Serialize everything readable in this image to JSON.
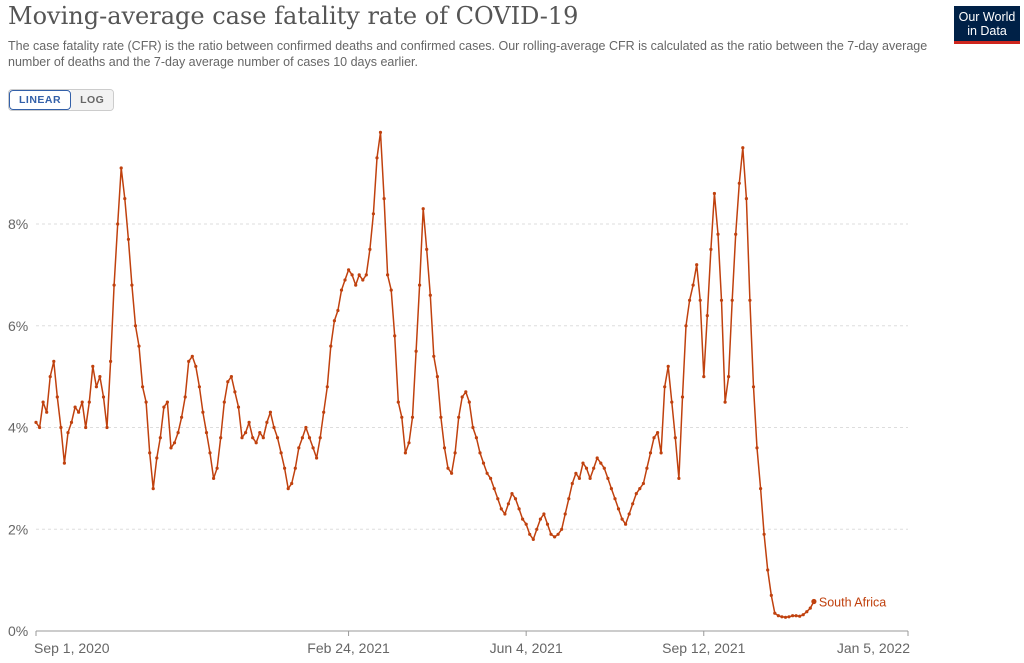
{
  "title": "Moving-average case fatality rate of COVID-19",
  "subtitle": "The case fatality rate (CFR) is the ratio between confirmed deaths and confirmed cases. Our rolling-average CFR is calculated as the ratio between the 7-day average number of deaths and the 7-day average number of cases 10 days earlier.",
  "logo": {
    "line1": "Our World",
    "line2": "in Data"
  },
  "scale_toggle": {
    "linear_label": "LINEAR",
    "log_label": "LOG",
    "selected": "LINEAR"
  },
  "colors": {
    "series": "#c0410e",
    "grid": "#dddddd",
    "axis": "#999999",
    "logo_bg": "#002147",
    "logo_accent": "#ce261e"
  },
  "chart_data": {
    "type": "line",
    "title": "Moving-average case fatality rate of COVID-19",
    "xlabel": "",
    "ylabel": "",
    "x_range": [
      "2020-09-01",
      "2022-01-05"
    ],
    "ylim": [
      0,
      9.9
    ],
    "y_ticks": [
      0,
      2,
      4,
      6,
      8
    ],
    "y_tick_labels": [
      "0%",
      "2%",
      "4%",
      "6%",
      "8%"
    ],
    "x_ticks": [
      "2020-09-01",
      "2021-02-24",
      "2021-06-04",
      "2021-09-12",
      "2022-01-05"
    ],
    "x_tick_labels": [
      "Sep 1, 2020",
      "Feb 24, 2021",
      "Jun 4, 2021",
      "Sep 12, 2021",
      "Jan 5, 2022"
    ],
    "grid": true,
    "series": [
      {
        "name": "South Africa",
        "color": "#c0410e",
        "points": [
          [
            0,
            4.1
          ],
          [
            2,
            4.0
          ],
          [
            4,
            4.5
          ],
          [
            6,
            4.3
          ],
          [
            8,
            5.0
          ],
          [
            10,
            5.3
          ],
          [
            12,
            4.6
          ],
          [
            14,
            4.0
          ],
          [
            16,
            3.3
          ],
          [
            18,
            3.9
          ],
          [
            20,
            4.1
          ],
          [
            22,
            4.4
          ],
          [
            24,
            4.3
          ],
          [
            26,
            4.5
          ],
          [
            28,
            4.0
          ],
          [
            30,
            4.5
          ],
          [
            32,
            5.2
          ],
          [
            34,
            4.8
          ],
          [
            36,
            5.0
          ],
          [
            38,
            4.6
          ],
          [
            40,
            4.0
          ],
          [
            42,
            5.3
          ],
          [
            44,
            6.8
          ],
          [
            46,
            8.0
          ],
          [
            48,
            9.1
          ],
          [
            50,
            8.5
          ],
          [
            52,
            7.7
          ],
          [
            54,
            6.8
          ],
          [
            56,
            6.0
          ],
          [
            58,
            5.6
          ],
          [
            60,
            4.8
          ],
          [
            62,
            4.5
          ],
          [
            64,
            3.5
          ],
          [
            66,
            2.8
          ],
          [
            68,
            3.4
          ],
          [
            70,
            3.8
          ],
          [
            72,
            4.4
          ],
          [
            74,
            4.5
          ],
          [
            76,
            3.6
          ],
          [
            78,
            3.7
          ],
          [
            80,
            3.9
          ],
          [
            82,
            4.2
          ],
          [
            84,
            4.6
          ],
          [
            86,
            5.3
          ],
          [
            88,
            5.4
          ],
          [
            90,
            5.2
          ],
          [
            92,
            4.8
          ],
          [
            94,
            4.3
          ],
          [
            96,
            3.9
          ],
          [
            98,
            3.5
          ],
          [
            100,
            3.0
          ],
          [
            102,
            3.2
          ],
          [
            104,
            3.8
          ],
          [
            106,
            4.5
          ],
          [
            108,
            4.9
          ],
          [
            110,
            5.0
          ],
          [
            112,
            4.7
          ],
          [
            114,
            4.4
          ],
          [
            116,
            3.8
          ],
          [
            118,
            3.9
          ],
          [
            120,
            4.1
          ],
          [
            122,
            3.8
          ],
          [
            124,
            3.7
          ],
          [
            126,
            3.9
          ],
          [
            128,
            3.8
          ],
          [
            130,
            4.1
          ],
          [
            132,
            4.3
          ],
          [
            134,
            4.0
          ],
          [
            136,
            3.8
          ],
          [
            138,
            3.5
          ],
          [
            140,
            3.2
          ],
          [
            142,
            2.8
          ],
          [
            144,
            2.9
          ],
          [
            146,
            3.2
          ],
          [
            148,
            3.6
          ],
          [
            150,
            3.8
          ],
          [
            152,
            4.0
          ],
          [
            154,
            3.8
          ],
          [
            156,
            3.6
          ],
          [
            158,
            3.4
          ],
          [
            160,
            3.8
          ],
          [
            162,
            4.3
          ],
          [
            164,
            4.8
          ],
          [
            166,
            5.6
          ],
          [
            168,
            6.1
          ],
          [
            170,
            6.3
          ],
          [
            172,
            6.7
          ],
          [
            174,
            6.9
          ],
          [
            176,
            7.1
          ],
          [
            178,
            7.0
          ],
          [
            180,
            6.8
          ],
          [
            182,
            7.0
          ],
          [
            184,
            6.9
          ],
          [
            186,
            7.0
          ],
          [
            188,
            7.5
          ],
          [
            190,
            8.2
          ],
          [
            192,
            9.3
          ],
          [
            194,
            9.8
          ],
          [
            196,
            8.5
          ],
          [
            198,
            7.0
          ],
          [
            200,
            6.7
          ],
          [
            202,
            5.8
          ],
          [
            204,
            4.5
          ],
          [
            206,
            4.2
          ],
          [
            208,
            3.5
          ],
          [
            210,
            3.7
          ],
          [
            212,
            4.2
          ],
          [
            214,
            5.5
          ],
          [
            216,
            6.8
          ],
          [
            218,
            8.3
          ],
          [
            220,
            7.5
          ],
          [
            222,
            6.6
          ],
          [
            224,
            5.4
          ],
          [
            226,
            5.0
          ],
          [
            228,
            4.2
          ],
          [
            230,
            3.6
          ],
          [
            232,
            3.2
          ],
          [
            234,
            3.1
          ],
          [
            236,
            3.5
          ],
          [
            238,
            4.2
          ],
          [
            240,
            4.6
          ],
          [
            242,
            4.7
          ],
          [
            244,
            4.5
          ],
          [
            246,
            4.0
          ],
          [
            248,
            3.8
          ],
          [
            250,
            3.5
          ],
          [
            252,
            3.3
          ],
          [
            254,
            3.1
          ],
          [
            256,
            3.0
          ],
          [
            258,
            2.8
          ],
          [
            260,
            2.6
          ],
          [
            262,
            2.4
          ],
          [
            264,
            2.3
          ],
          [
            266,
            2.5
          ],
          [
            268,
            2.7
          ],
          [
            270,
            2.6
          ],
          [
            272,
            2.4
          ],
          [
            274,
            2.2
          ],
          [
            276,
            2.1
          ],
          [
            278,
            1.9
          ],
          [
            280,
            1.8
          ],
          [
            282,
            2.0
          ],
          [
            284,
            2.2
          ],
          [
            286,
            2.3
          ],
          [
            288,
            2.1
          ],
          [
            290,
            1.9
          ],
          [
            292,
            1.85
          ],
          [
            294,
            1.9
          ],
          [
            296,
            2.0
          ],
          [
            298,
            2.3
          ],
          [
            300,
            2.6
          ],
          [
            302,
            2.9
          ],
          [
            304,
            3.1
          ],
          [
            306,
            3.0
          ],
          [
            308,
            3.3
          ],
          [
            310,
            3.2
          ],
          [
            312,
            3.0
          ],
          [
            314,
            3.2
          ],
          [
            316,
            3.4
          ],
          [
            318,
            3.3
          ],
          [
            320,
            3.2
          ],
          [
            322,
            3.0
          ],
          [
            324,
            2.8
          ],
          [
            326,
            2.6
          ],
          [
            328,
            2.4
          ],
          [
            330,
            2.2
          ],
          [
            332,
            2.1
          ],
          [
            334,
            2.3
          ],
          [
            336,
            2.5
          ],
          [
            338,
            2.7
          ],
          [
            340,
            2.8
          ],
          [
            342,
            2.9
          ],
          [
            344,
            3.2
          ],
          [
            346,
            3.5
          ],
          [
            348,
            3.8
          ],
          [
            350,
            3.9
          ],
          [
            352,
            3.5
          ],
          [
            354,
            4.8
          ],
          [
            356,
            5.2
          ],
          [
            358,
            4.5
          ],
          [
            360,
            3.8
          ],
          [
            362,
            3.0
          ],
          [
            364,
            4.6
          ],
          [
            366,
            6.0
          ],
          [
            368,
            6.5
          ],
          [
            370,
            6.8
          ],
          [
            372,
            7.2
          ],
          [
            374,
            6.5
          ],
          [
            376,
            5.0
          ],
          [
            378,
            6.2
          ],
          [
            380,
            7.5
          ],
          [
            382,
            8.6
          ],
          [
            384,
            7.8
          ],
          [
            386,
            6.5
          ],
          [
            388,
            4.5
          ],
          [
            390,
            5.0
          ],
          [
            392,
            6.5
          ],
          [
            394,
            7.8
          ],
          [
            396,
            8.8
          ],
          [
            398,
            9.5
          ],
          [
            400,
            8.5
          ],
          [
            402,
            6.5
          ],
          [
            404,
            4.8
          ],
          [
            406,
            3.6
          ],
          [
            408,
            2.8
          ],
          [
            410,
            1.9
          ],
          [
            412,
            1.2
          ],
          [
            414,
            0.7
          ],
          [
            416,
            0.35
          ],
          [
            418,
            0.3
          ],
          [
            420,
            0.28
          ],
          [
            422,
            0.27
          ],
          [
            424,
            0.28
          ],
          [
            426,
            0.3
          ],
          [
            428,
            0.3
          ],
          [
            430,
            0.29
          ],
          [
            432,
            0.32
          ],
          [
            434,
            0.38
          ],
          [
            436,
            0.45
          ],
          [
            438,
            0.58
          ]
        ]
      }
    ],
    "x_day_ticks": [
      0,
      176,
      276,
      376,
      491
    ]
  }
}
